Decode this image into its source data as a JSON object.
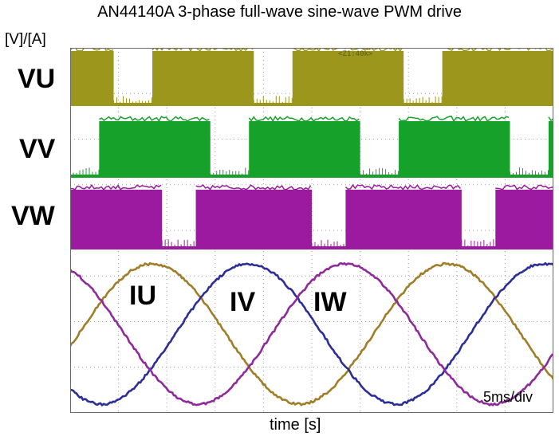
{
  "chart_data": {
    "type": "line",
    "title": "AN44140A 3-phase full-wave sine-wave PWM drive",
    "y_unit_label": "[V]/[A]",
    "xlabel": "time [s]",
    "time_per_div": "5ms/div",
    "zoom_indicator": "<Z1:40k>",
    "grid": true,
    "divisions": {
      "x": 10,
      "y": 8
    },
    "period_divs": 6.1,
    "voltage_channels": [
      {
        "name": "VU",
        "color": "#9c961c",
        "low_intervals_divs": [
          [
            0.9,
            1.7
          ],
          [
            3.8,
            4.6
          ],
          [
            6.9,
            7.7
          ]
        ]
      },
      {
        "name": "VV",
        "color": "#16a12a",
        "low_intervals_divs": [
          [
            0.0,
            0.6
          ],
          [
            2.9,
            3.7
          ],
          [
            6.0,
            6.8
          ],
          [
            9.1,
            9.9
          ]
        ]
      },
      {
        "name": "VW",
        "color": "#9b1a9f",
        "low_intervals_divs": [
          [
            1.9,
            2.6
          ],
          [
            5.0,
            5.7
          ],
          [
            8.1,
            8.8
          ]
        ]
      }
    ],
    "current_channels": [
      {
        "name": "IU",
        "color": "#a07e28",
        "peak_divs": [
          1.7,
          7.8
        ]
      },
      {
        "name": "IV",
        "color": "#2c2e96",
        "peak_divs": [
          3.7,
          9.8
        ]
      },
      {
        "name": "IW",
        "color": "#8e2a9a",
        "peak_divs": [
          -0.4,
          5.7
        ]
      }
    ]
  }
}
